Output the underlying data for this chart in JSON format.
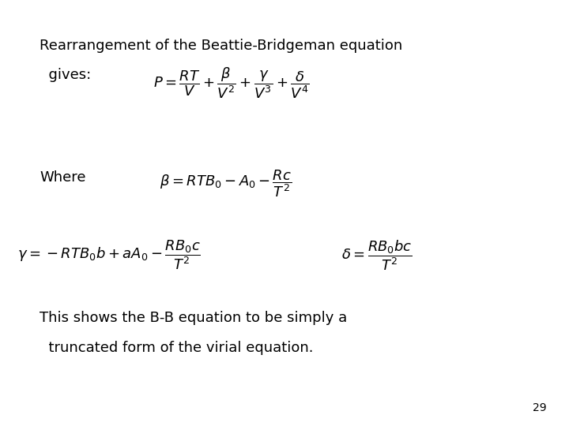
{
  "background_color": "#ffffff",
  "title_line1": "Rearrangement of the Beattie-Bridgeman equation",
  "title_line2": "  gives:",
  "eq1": "$P = \\dfrac{RT}{V} + \\dfrac{\\beta}{V^2} + \\dfrac{\\gamma}{V^3} + \\dfrac{\\delta}{V^4}$",
  "where_label": "Where",
  "eq2": "$\\beta = RTB_0 - A_0 - \\dfrac{Rc}{T^2}$",
  "eq3": "$\\gamma = -RTB_0 b + aA_0 - \\dfrac{RB_0 c}{T^2}$",
  "eq4": "$\\delta = \\dfrac{RB_0 bc}{T^2}$",
  "footer_line1": "This shows the B-B equation to be simply a",
  "footer_line2": "  truncated form of the virial equation.",
  "page_number": "29",
  "text_color": "#000000",
  "font_size_title": 13,
  "font_size_eq": 13,
  "font_size_text": 13,
  "font_size_page": 10
}
